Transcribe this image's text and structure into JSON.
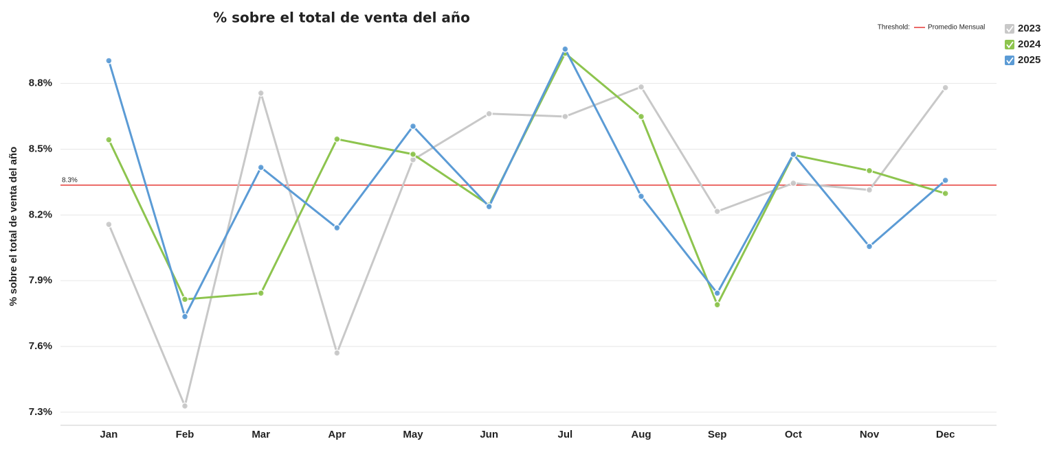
{
  "chart_data": {
    "type": "line",
    "title": "% sobre el total de venta del año",
    "y_label": "% sobre el total de venta del año",
    "categories": [
      "Jan",
      "Feb",
      "Mar",
      "Apr",
      "May",
      "Jun",
      "Jul",
      "Aug",
      "Sep",
      "Oct",
      "Nov",
      "Dec"
    ],
    "series": [
      {
        "name": "2023",
        "color": "#c8c8c8",
        "values": [
          8.157,
          7.328,
          8.756,
          7.57,
          8.452,
          8.662,
          8.649,
          8.784,
          8.216,
          8.345,
          8.314,
          8.781
        ]
      },
      {
        "name": "2024",
        "color": "#8dc44e",
        "values": [
          8.543,
          7.815,
          7.843,
          8.546,
          8.477,
          8.245,
          8.938,
          8.649,
          7.79,
          8.474,
          8.402,
          8.298
        ]
      },
      {
        "name": "2025",
        "color": "#5b9bd5",
        "values": [
          8.904,
          7.736,
          8.417,
          8.141,
          8.605,
          8.238,
          8.957,
          8.285,
          7.843,
          8.477,
          8.056,
          8.358
        ]
      }
    ],
    "ylim": [
      7.24,
      9.04
    ],
    "yticks": [
      {
        "value": 7.3,
        "label": "7.3%"
      },
      {
        "value": 7.6,
        "label": "7.6%"
      },
      {
        "value": 7.9,
        "label": "7.9%"
      },
      {
        "value": 8.2,
        "label": "8.2%"
      },
      {
        "value": 8.5,
        "label": "8.5%"
      },
      {
        "value": 8.8,
        "label": "8.8%"
      }
    ],
    "grid": true,
    "threshold_title": "Threshold:",
    "threshold": {
      "name": "Promedio Mensual",
      "value": 8.336,
      "label": "8.3%",
      "color": "#e53935"
    }
  }
}
